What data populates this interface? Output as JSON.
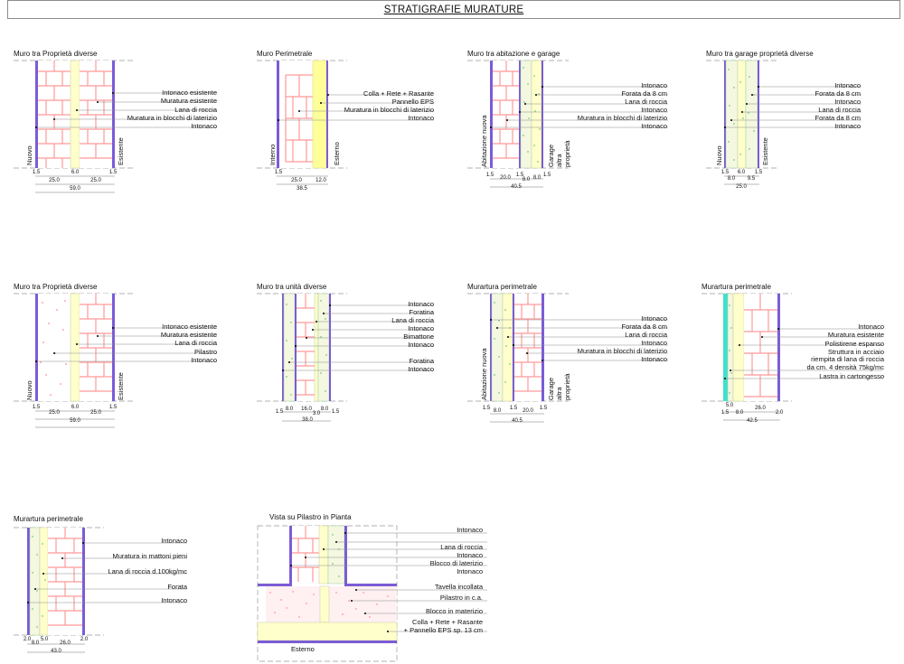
{
  "title": "STRATIGRAFIE MURATURE",
  "colors": {
    "brick_fill": "#ffffff",
    "brick_line": "#ff9999",
    "plaster": "#7b5cd6",
    "insulation": "#ffffcc",
    "eps": "#ffff99",
    "wool_dots": "#4caf50",
    "cladding": "#40e0d0",
    "concrete_dots": "#ff6b81",
    "leader": "#8c8c8c"
  },
  "panels": [
    {
      "title": "Muro tra Proprietà diverse",
      "labels": [
        "Intonaco esistente",
        "Muratura esistente",
        "Lana di roccia",
        "Muratura in blocchi di laterizio",
        "Intonaco"
      ],
      "side_labels": [
        "Nuovo",
        "Esistente"
      ],
      "dims": [
        "1.5",
        "6.0",
        "1.5",
        "25.0",
        "25.0",
        "59.0"
      ]
    },
    {
      "title": "Muro Perimetrale",
      "labels": [
        "Colla + Rete + Rasante",
        "Pannello EPS",
        "Muratura in blocchi di laterizio",
        "Intonaco"
      ],
      "side_labels": [
        "Interno",
        "Esterno"
      ],
      "dims": [
        "1.5",
        "25.0",
        "12.0",
        "38.5"
      ]
    },
    {
      "title": "Muro tra abitazione e garage",
      "labels": [
        "Intonaco",
        "Forata da 8 cm",
        "Lana di roccia",
        "Intonaco",
        "Muratura in blocchi di laterizio",
        "Intonaco"
      ],
      "side_labels": [
        "Abitazione nuova",
        "Garage",
        "altra",
        "proprietà"
      ],
      "dims": [
        "1.5",
        "20.0",
        "1.5",
        "8.0",
        "8.0",
        "1.5",
        "40.5"
      ]
    },
    {
      "title": "Muro tra garage proprietà diverse",
      "labels": [
        "Intonaco",
        "Forata da 8 cm",
        "Intonaco",
        "Lana di roccia",
        "Forata da 8 cm",
        "Intonaco"
      ],
      "side_labels": [
        "Nuovo",
        "Esistente"
      ],
      "dims": [
        "1.5",
        "6.0",
        "1.5",
        "8.0",
        "9.5",
        "25.0"
      ]
    },
    {
      "title": "Muro tra Proprietà diverse",
      "labels": [
        "Intonaco esistente",
        "Muratura esistente",
        "Lana di roccia",
        "Pilastro",
        "Intonaco"
      ],
      "side_labels": [
        "Nuovo",
        "Esistente"
      ],
      "dims": [
        "1.5",
        "6.0",
        "1.5",
        "25.0",
        "25.0",
        "59.0"
      ]
    },
    {
      "title": "Muro tra unità diverse",
      "labels": [
        "Intonaco",
        "Foratina",
        "Lana di roccia",
        "Intonaco",
        "Bimattone",
        "Intonaco",
        "Foratina",
        "Intonaco"
      ],
      "side_labels": [],
      "dims": [
        "1.5",
        "8.0",
        "16.0",
        "3.0",
        "8.0",
        "1.5",
        "38.0"
      ]
    },
    {
      "title": "Murartura perimetrale",
      "labels": [
        "Intonaco",
        "Forata da 8 cm",
        "Lana di roccia",
        "Intonaco",
        "Muratura in blocchi di laterizio",
        "Intonaco"
      ],
      "side_labels": [
        "Abitazione nuova",
        "Garage",
        "altra",
        "proprietà"
      ],
      "dims": [
        "1.5",
        "8.0",
        "1.5",
        "20.0",
        "1.5",
        "40.5"
      ]
    },
    {
      "title": "Murartura perimetrale",
      "labels": [
        "Intonaco",
        "Muratura esistente",
        "Polistirene espanso",
        "Struttura in acciaio",
        "riempita di lana di roccia",
        "da cm. 4 densità 75kg/mc",
        "Lastra in cartongesso"
      ],
      "side_labels": [],
      "dims": [
        "5.0",
        "1.5",
        "8.0",
        "26.0",
        "2.0",
        "42.5"
      ]
    },
    {
      "title": "Murartura perimetrale",
      "labels": [
        "Intonaco",
        "Muratura in mattoni pieni",
        "Lana di roccia d.100kg/mc",
        "Forata",
        "Intonaco"
      ],
      "side_labels": [],
      "dims": [
        "2.0",
        "8.0",
        "5.0",
        "26.0",
        "2.0",
        "43.0"
      ]
    },
    {
      "title": "Vista su Pilastro in Pianta",
      "labels": [
        "Intonaco",
        "Lana di roccia",
        "Intonaco",
        "Blocco di laterizio",
        "Intonaco",
        "Tavella incollata",
        "Pilastro in c.a.",
        "Blocco in materizio",
        "Colla + Rete + Rasante",
        "+ Pannello EPS sp. 13 cm"
      ],
      "side_labels": [
        "Esterno"
      ],
      "dims": []
    }
  ]
}
